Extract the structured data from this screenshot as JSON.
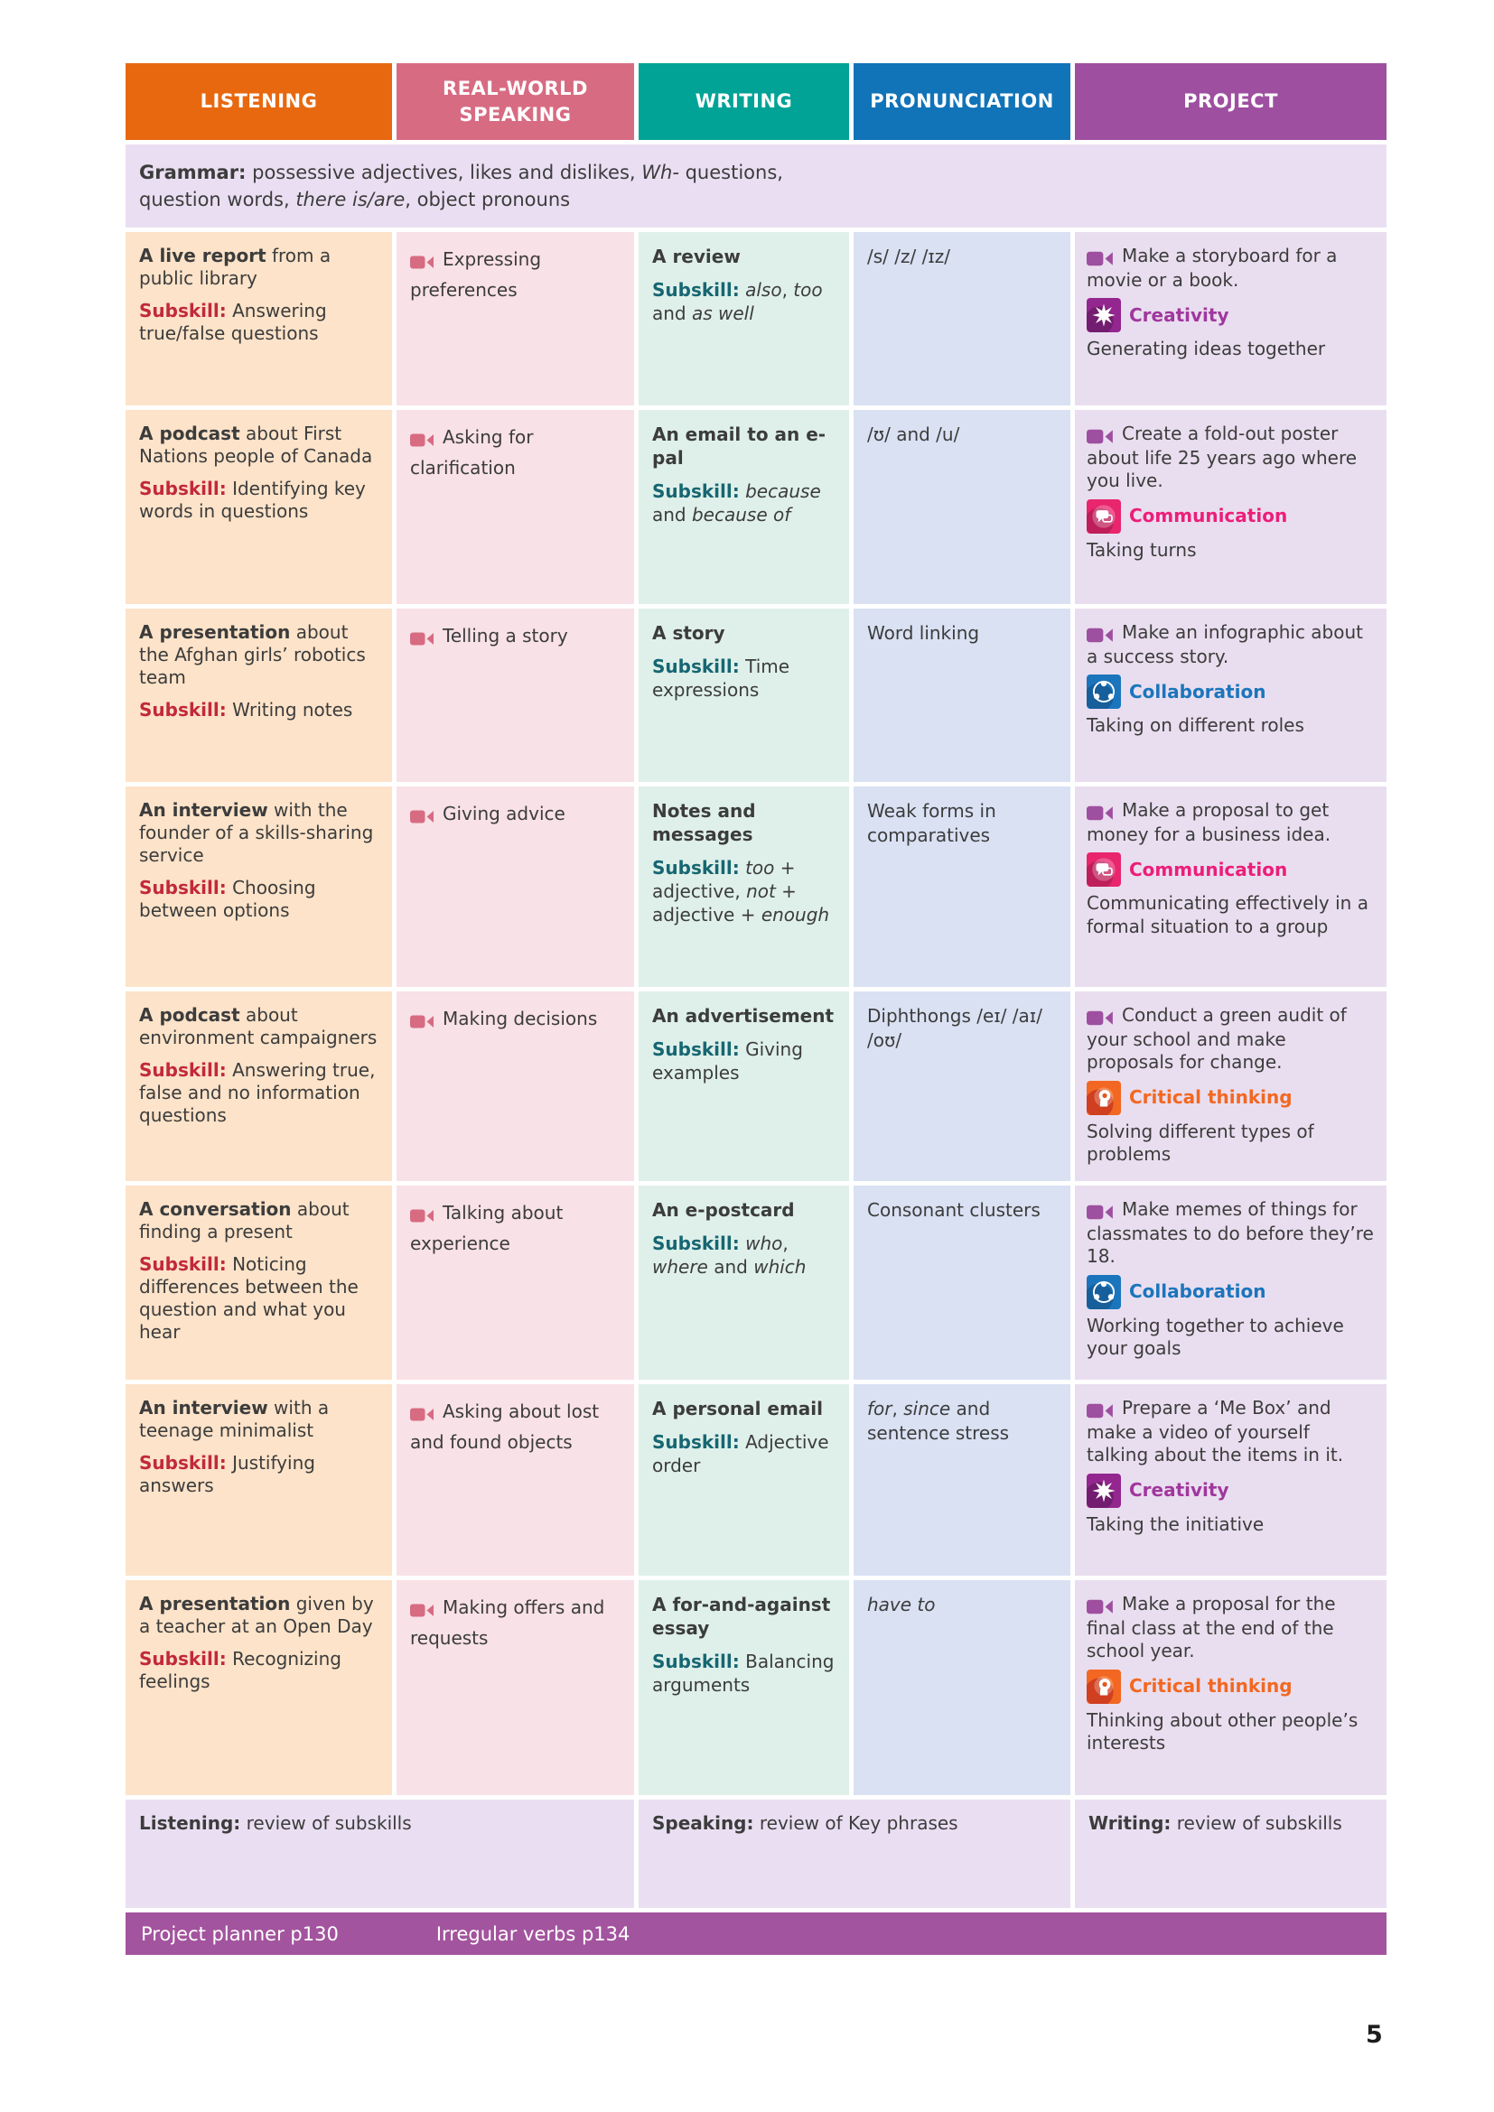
{
  "header": {
    "columns": [
      "LISTENING",
      "REAL-WORLD SPEAKING",
      "WRITING",
      "PRONUNCIATION",
      "PROJECT"
    ]
  },
  "grammar": {
    "segments": [
      {
        "t": "Grammar:",
        "b": 1
      },
      {
        "t": " possessive adjectives, likes and dislikes, "
      },
      {
        "t": "Wh-",
        "i": 1
      },
      {
        "t": " questions,"
      },
      {
        "br": 1
      },
      {
        "t": "question words, "
      },
      {
        "t": "there is/are",
        "i": 1
      },
      {
        "t": ", object pronouns"
      }
    ]
  },
  "rows": [
    {
      "listening": {
        "title": [
          {
            "t": "A live report",
            "b": 1
          },
          {
            "t": " from a public library"
          }
        ],
        "subskill": [
          {
            "t": "Subskill:",
            "cls": "sub-l"
          },
          {
            "t": " Answering true/false questions"
          }
        ]
      },
      "speaking": {
        "text": [
          {
            "t": "Expressing preferences"
          }
        ]
      },
      "writing": {
        "title": [
          {
            "t": "A review",
            "b": 1
          }
        ],
        "subskill": [
          {
            "t": "Subskill:",
            "cls": "sub-w"
          },
          {
            "t": " "
          },
          {
            "t": "also",
            "i": 1
          },
          {
            "t": ", "
          },
          {
            "t": "too",
            "i": 1
          },
          {
            "t": " and "
          },
          {
            "t": "as well",
            "i": 1
          }
        ]
      },
      "pronunciation": {
        "text": [
          {
            "t": "/s/ /z/ /ɪz/"
          }
        ]
      },
      "project": {
        "task": [
          {
            "t": "Make a storyboard for a movie or a book."
          }
        ],
        "skill": "Creativity",
        "desc": [
          {
            "t": "Generating ideas together"
          }
        ]
      }
    },
    {
      "listening": {
        "title": [
          {
            "t": "A podcast",
            "b": 1
          },
          {
            "t": " about First Nations people of Canada"
          }
        ],
        "subskill": [
          {
            "t": "Subskill:",
            "cls": "sub-l"
          },
          {
            "t": " Identifying key words in questions"
          }
        ]
      },
      "speaking": {
        "text": [
          {
            "t": "Asking for clarification"
          }
        ]
      },
      "writing": {
        "title": [
          {
            "t": "An email to an e-pal",
            "b": 1
          }
        ],
        "subskill": [
          {
            "t": "Subskill:",
            "cls": "sub-w"
          },
          {
            "t": " "
          },
          {
            "t": "because",
            "i": 1
          },
          {
            "t": " and "
          },
          {
            "t": "because of",
            "i": 1
          }
        ]
      },
      "pronunciation": {
        "text": [
          {
            "t": "/ʊ/ and /u/"
          }
        ]
      },
      "project": {
        "task": [
          {
            "t": "Create a fold-out poster about life 25 years ago where you live."
          }
        ],
        "skill": "Communication",
        "desc": [
          {
            "t": "Taking turns"
          }
        ]
      }
    },
    {
      "listening": {
        "title": [
          {
            "t": "A presentation",
            "b": 1
          },
          {
            "t": " about the Afghan girls’ robotics team"
          }
        ],
        "subskill": [
          {
            "t": "Subskill:",
            "cls": "sub-l"
          },
          {
            "t": " Writing notes"
          }
        ]
      },
      "speaking": {
        "text": [
          {
            "t": "Telling a story"
          }
        ]
      },
      "writing": {
        "title": [
          {
            "t": "A story",
            "b": 1
          }
        ],
        "subskill": [
          {
            "t": "Subskill:",
            "cls": "sub-w"
          },
          {
            "t": " Time expressions"
          }
        ]
      },
      "pronunciation": {
        "text": [
          {
            "t": "Word linking"
          }
        ]
      },
      "project": {
        "task": [
          {
            "t": "Make an infographic about a success story."
          }
        ],
        "skill": "Collaboration",
        "desc": [
          {
            "t": "Taking on different roles"
          }
        ]
      }
    },
    {
      "listening": {
        "title": [
          {
            "t": "An interview",
            "b": 1
          },
          {
            "t": " with the founder of a skills-sharing service"
          }
        ],
        "subskill": [
          {
            "t": "Subskill:",
            "cls": "sub-l"
          },
          {
            "t": " Choosing between options"
          }
        ]
      },
      "speaking": {
        "text": [
          {
            "t": "Giving advice"
          }
        ]
      },
      "writing": {
        "title": [
          {
            "t": "Notes and messages",
            "b": 1
          }
        ],
        "subskill": [
          {
            "t": "Subskill:",
            "cls": "sub-w"
          },
          {
            "t": " "
          },
          {
            "t": "too",
            "i": 1
          },
          {
            "t": " + adjective, "
          },
          {
            "t": "not",
            "i": 1
          },
          {
            "t": " + adjective + "
          },
          {
            "t": "enough",
            "i": 1
          }
        ]
      },
      "pronunciation": {
        "text": [
          {
            "t": "Weak forms in comparatives"
          }
        ]
      },
      "project": {
        "task": [
          {
            "t": "Make a proposal to get money for a business idea."
          }
        ],
        "skill": "Communication",
        "desc": [
          {
            "t": "Communicating effectively in a formal situation to a group"
          }
        ]
      }
    },
    {
      "listening": {
        "title": [
          {
            "t": "A podcast",
            "b": 1
          },
          {
            "t": " about environment campaigners"
          }
        ],
        "subskill": [
          {
            "t": "Subskill:",
            "cls": "sub-l"
          },
          {
            "t": " Answering true, false and no information questions"
          }
        ]
      },
      "speaking": {
        "text": [
          {
            "t": "Making decisions"
          }
        ]
      },
      "writing": {
        "title": [
          {
            "t": "An advertisement",
            "b": 1
          }
        ],
        "subskill": [
          {
            "t": "Subskill:",
            "cls": "sub-w"
          },
          {
            "t": " Giving examples"
          }
        ]
      },
      "pronunciation": {
        "text": [
          {
            "t": "Diphthongs /eɪ/ /aɪ/ /oʊ/"
          }
        ]
      },
      "project": {
        "task": [
          {
            "t": "Conduct a green audit of your school and make proposals for change."
          }
        ],
        "skill": "Critical thinking",
        "desc": [
          {
            "t": "Solving different types of problems"
          }
        ]
      }
    },
    {
      "listening": {
        "title": [
          {
            "t": "A conversation",
            "b": 1
          },
          {
            "t": " about finding a present"
          }
        ],
        "subskill": [
          {
            "t": "Subskill:",
            "cls": "sub-l"
          },
          {
            "t": " Noticing differences between the question and what you hear"
          }
        ]
      },
      "speaking": {
        "text": [
          {
            "t": "Talking about experience"
          }
        ]
      },
      "writing": {
        "title": [
          {
            "t": "An e-postcard",
            "b": 1
          }
        ],
        "subskill": [
          {
            "t": "Subskill:",
            "cls": "sub-w"
          },
          {
            "t": " "
          },
          {
            "t": "who",
            "i": 1
          },
          {
            "t": ", "
          },
          {
            "t": "where",
            "i": 1
          },
          {
            "t": " and "
          },
          {
            "t": "which",
            "i": 1
          }
        ]
      },
      "pronunciation": {
        "text": [
          {
            "t": "Consonant clusters"
          }
        ]
      },
      "project": {
        "task": [
          {
            "t": "Make memes of things for classmates to do before they’re 18."
          }
        ],
        "skill": "Collaboration",
        "desc": [
          {
            "t": "Working together to achieve your goals"
          }
        ]
      }
    },
    {
      "listening": {
        "title": [
          {
            "t": "An interview",
            "b": 1
          },
          {
            "t": " with a teenage minimalist"
          }
        ],
        "subskill": [
          {
            "t": "Subskill:",
            "cls": "sub-l"
          },
          {
            "t": " Justifying answers"
          }
        ]
      },
      "speaking": {
        "text": [
          {
            "t": "Asking about lost and found objects"
          }
        ]
      },
      "writing": {
        "title": [
          {
            "t": "A personal email",
            "b": 1
          }
        ],
        "subskill": [
          {
            "t": "Subskill:",
            "cls": "sub-w"
          },
          {
            "t": " Adjective order"
          }
        ]
      },
      "pronunciation": {
        "text": [
          {
            "t": "for",
            "i": 1
          },
          {
            "t": ", "
          },
          {
            "t": "since",
            "i": 1
          },
          {
            "t": " and sentence stress"
          }
        ]
      },
      "project": {
        "task": [
          {
            "t": "Prepare a ‘Me Box’ and make a video of yourself talking about the items in it."
          }
        ],
        "skill": "Creativity",
        "desc": [
          {
            "t": "Taking the initiative"
          }
        ]
      }
    },
    {
      "listening": {
        "title": [
          {
            "t": "A presentation",
            "b": 1
          },
          {
            "t": " given by a teacher at an Open Day"
          }
        ],
        "subskill": [
          {
            "t": "Subskill:",
            "cls": "sub-l"
          },
          {
            "t": " Recognizing feelings"
          }
        ]
      },
      "speaking": {
        "text": [
          {
            "t": "Making offers and requests"
          }
        ]
      },
      "writing": {
        "title": [
          {
            "t": "A for-and-against essay",
            "b": 1
          }
        ],
        "subskill": [
          {
            "t": "Subskill:",
            "cls": "sub-w"
          },
          {
            "t": " Balancing arguments"
          }
        ]
      },
      "pronunciation": {
        "text": [
          {
            "t": "have to",
            "i": 1
          }
        ]
      },
      "project": {
        "task": [
          {
            "t": "Make a proposal for the final class at the end of the school year."
          }
        ],
        "skill": "Critical thinking",
        "desc": [
          {
            "t": "Thinking about other people’s interests"
          }
        ]
      }
    }
  ],
  "review": [
    {
      "label": "Listening:",
      "text": " review of subskills"
    },
    {
      "label": "Speaking:",
      "text": " review of Key phrases"
    },
    {
      "label": "Writing:",
      "text": " review of subskills"
    }
  ],
  "footer": {
    "items": [
      "Project planner p130",
      "Irregular verbs p134"
    ]
  },
  "page_number": "5",
  "icons": {
    "video-camera": "camcorder glyph before speaking/project tasks",
    "creativity": "purple badge with star-burst",
    "communication": "pink badge with speech bubbles",
    "collaboration": "blue badge with ring of people",
    "critical_thinking": "orange badge with head profile"
  },
  "colors": {
    "listening_header": "#e8680f",
    "speaking_header": "#d76b82",
    "writing_header": "#00a396",
    "pronunciation_header": "#1173b8",
    "project_header": "#9e4fa0",
    "footer_bar": "#a3549e",
    "creativity": "#a0379e",
    "communication": "#ec1e79",
    "collaboration": "#1b75bc",
    "critical_thinking": "#f26822",
    "subskill_listening": "#c2283c",
    "subskill_writing": "#166672"
  }
}
